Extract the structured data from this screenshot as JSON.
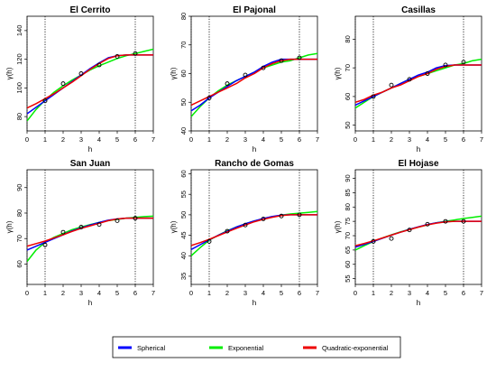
{
  "chart_data": [
    {
      "type": "line",
      "title": "El Cerrito",
      "xlabel": "h",
      "ylabel": "γ(h)",
      "xlim": [
        0,
        7
      ],
      "ylim": [
        70,
        150
      ],
      "xticks": [
        0,
        1,
        2,
        3,
        4,
        5,
        6,
        7
      ],
      "yticks": [
        80,
        100,
        120,
        140
      ],
      "vlines": [
        0,
        1,
        6
      ],
      "points": {
        "x": [
          1,
          2,
          3,
          4,
          5,
          6
        ],
        "y": [
          91,
          103,
          110,
          116,
          122,
          124
        ]
      },
      "series": [
        {
          "name": "Spherical",
          "x": [
            0,
            0.5,
            1,
            1.5,
            2,
            2.5,
            3,
            3.5,
            4,
            4.5,
            5,
            5.5,
            6,
            6.5,
            7
          ],
          "y": [
            82,
            86.5,
            91,
            95.5,
            100,
            104.5,
            109,
            113.5,
            117.5,
            121,
            122.5,
            123,
            123,
            123,
            123
          ]
        },
        {
          "name": "Exponential",
          "x": [
            0,
            0.5,
            1,
            1.5,
            2,
            2.5,
            3,
            3.5,
            4,
            4.5,
            5,
            5.5,
            6,
            6.5,
            7
          ],
          "y": [
            77,
            85,
            91.5,
            97,
            101.5,
            105.5,
            109,
            112.5,
            115.5,
            118,
            120.5,
            122.5,
            124,
            125.5,
            127
          ]
        },
        {
          "name": "Quadratic-exponential",
          "x": [
            0,
            0.5,
            1,
            1.5,
            2,
            2.5,
            3,
            3.5,
            4,
            4.5,
            5,
            5.5,
            6,
            6.5,
            7
          ],
          "y": [
            86,
            89,
            92.5,
            96,
            100,
            104,
            108.5,
            113,
            117,
            120.5,
            122.5,
            123,
            123,
            123,
            123
          ]
        }
      ]
    },
    {
      "type": "line",
      "title": "El Pajonal",
      "xlabel": "h",
      "ylabel": "γ(h)",
      "xlim": [
        0,
        7
      ],
      "ylim": [
        40,
        80
      ],
      "xticks": [
        0,
        1,
        2,
        3,
        4,
        5,
        6,
        7
      ],
      "yticks": [
        40,
        50,
        60,
        70,
        80
      ],
      "vlines": [
        0,
        1,
        6
      ],
      "points": {
        "x": [
          1,
          2,
          3,
          4,
          5,
          6
        ],
        "y": [
          51.5,
          56.5,
          59.5,
          62,
          64.5,
          65.5
        ]
      },
      "series": [
        {
          "name": "Spherical",
          "x": [
            0,
            0.5,
            1,
            1.5,
            2,
            2.5,
            3,
            3.5,
            4,
            4.5,
            5,
            5.5,
            6,
            6.5,
            7
          ],
          "y": [
            47,
            49,
            51.5,
            53.5,
            55.5,
            57.5,
            59,
            60.5,
            62.5,
            64,
            65,
            65,
            65,
            65,
            65
          ]
        },
        {
          "name": "Exponential",
          "x": [
            0,
            0.5,
            1,
            1.5,
            2,
            2.5,
            3,
            3.5,
            4,
            4.5,
            5,
            5.5,
            6,
            6.5,
            7
          ],
          "y": [
            45,
            48.5,
            51.5,
            54,
            56,
            57.5,
            59,
            60.5,
            62,
            63,
            64,
            64.5,
            65.5,
            66.5,
            67
          ]
        },
        {
          "name": "Quadratic-exponential",
          "x": [
            0,
            0.5,
            1,
            1.5,
            2,
            2.5,
            3,
            3.5,
            4,
            4.5,
            5,
            5.5,
            6,
            6.5,
            7
          ],
          "y": [
            49,
            50.5,
            52,
            53.5,
            55,
            56.5,
            58.5,
            60,
            62,
            63.5,
            64.5,
            65,
            65,
            65,
            65
          ]
        }
      ]
    },
    {
      "type": "line",
      "title": "Casillas",
      "xlabel": "h",
      "ylabel": "γ(h)",
      "xlim": [
        0,
        7
      ],
      "ylim": [
        48,
        88
      ],
      "xticks": [
        0,
        1,
        2,
        3,
        4,
        5,
        6,
        7
      ],
      "yticks": [
        50,
        60,
        70,
        80
      ],
      "vlines": [
        0,
        1,
        6
      ],
      "points": {
        "x": [
          1,
          2,
          3,
          4,
          5,
          6
        ],
        "y": [
          60,
          64,
          66,
          68,
          71,
          72
        ]
      },
      "series": [
        {
          "name": "Spherical",
          "x": [
            0,
            0.5,
            1,
            1.5,
            2,
            2.5,
            3,
            3.5,
            4,
            4.5,
            5,
            5.5,
            6,
            6.5,
            7
          ],
          "y": [
            57,
            58.5,
            60,
            61.5,
            63,
            64.5,
            66,
            67.5,
            68.5,
            70,
            70.8,
            71,
            71,
            71,
            71
          ]
        },
        {
          "name": "Exponential",
          "x": [
            0,
            0.5,
            1,
            1.5,
            2,
            2.5,
            3,
            3.5,
            4,
            4.5,
            5,
            5.5,
            6,
            6.5,
            7
          ],
          "y": [
            56,
            58,
            60,
            61.5,
            63,
            64.5,
            66,
            67,
            68,
            69,
            70,
            71,
            71.5,
            72.5,
            73
          ]
        },
        {
          "name": "Quadratic-exponential",
          "x": [
            0,
            0.5,
            1,
            1.5,
            2,
            2.5,
            3,
            3.5,
            4,
            4.5,
            5,
            5.5,
            6,
            6.5,
            7
          ],
          "y": [
            58,
            59,
            60.5,
            61.5,
            63,
            64,
            65.5,
            67,
            68,
            69.5,
            70.5,
            71,
            71,
            71,
            71
          ]
        }
      ]
    },
    {
      "type": "line",
      "title": "San Juan",
      "xlabel": "h",
      "ylabel": "γ(h)",
      "xlim": [
        0,
        7
      ],
      "ylim": [
        52,
        97
      ],
      "xticks": [
        0,
        1,
        2,
        3,
        4,
        5,
        6,
        7
      ],
      "yticks": [
        60,
        70,
        80,
        90
      ],
      "vlines": [
        0,
        1,
        6
      ],
      "points": {
        "x": [
          1,
          2,
          3,
          4,
          5,
          6
        ],
        "y": [
          67.5,
          72.5,
          74.5,
          75.5,
          77,
          78
        ]
      },
      "series": [
        {
          "name": "Spherical",
          "x": [
            0,
            0.5,
            1,
            1.5,
            2,
            2.5,
            3,
            3.5,
            4,
            4.5,
            5,
            5.5,
            6,
            6.5,
            7
          ],
          "y": [
            65.5,
            67,
            68.5,
            70,
            71.5,
            73,
            74.2,
            75.3,
            76.3,
            77.2,
            77.7,
            78,
            78,
            78,
            78
          ]
        },
        {
          "name": "Exponential",
          "x": [
            0,
            0.5,
            1,
            1.5,
            2,
            2.5,
            3,
            3.5,
            4,
            4.5,
            5,
            5.5,
            6,
            6.5,
            7
          ],
          "y": [
            61,
            65.5,
            68.5,
            70.5,
            72,
            73.5,
            74.5,
            75.5,
            76.3,
            77,
            77.5,
            78,
            78.3,
            78.6,
            78.8
          ]
        },
        {
          "name": "Quadratic-exponential",
          "x": [
            0,
            0.5,
            1,
            1.5,
            2,
            2.5,
            3,
            3.5,
            4,
            4.5,
            5,
            5.5,
            6,
            6.5,
            7
          ],
          "y": [
            67,
            68,
            69,
            70.3,
            71.5,
            72.8,
            74,
            75,
            76,
            77,
            77.7,
            78,
            78,
            78,
            78
          ]
        }
      ]
    },
    {
      "type": "line",
      "title": "Rancho de Gomas",
      "xlabel": "h",
      "ylabel": "γ(h)",
      "xlim": [
        0,
        7
      ],
      "ylim": [
        33,
        61
      ],
      "xticks": [
        0,
        1,
        2,
        3,
        4,
        5,
        6,
        7
      ],
      "yticks": [
        35,
        40,
        45,
        50,
        55,
        60
      ],
      "vlines": [
        0,
        1,
        6
      ],
      "points": {
        "x": [
          1,
          2,
          3,
          4,
          5,
          6
        ],
        "y": [
          43.5,
          46,
          47.5,
          49,
          49.7,
          50
        ]
      },
      "series": [
        {
          "name": "Spherical",
          "x": [
            0,
            0.5,
            1,
            1.5,
            2,
            2.5,
            3,
            3.5,
            4,
            4.5,
            5,
            5.5,
            6,
            6.5,
            7
          ],
          "y": [
            41.5,
            42.7,
            43.9,
            45,
            46,
            47,
            47.8,
            48.5,
            49.1,
            49.6,
            49.9,
            50,
            50,
            50,
            50
          ]
        },
        {
          "name": "Exponential",
          "x": [
            0,
            0.5,
            1,
            1.5,
            2,
            2.5,
            3,
            3.5,
            4,
            4.5,
            5,
            5.5,
            6,
            6.5,
            7
          ],
          "y": [
            40,
            42,
            43.8,
            45,
            46.1,
            47,
            47.8,
            48.5,
            49,
            49.5,
            49.9,
            50.2,
            50.4,
            50.6,
            50.8
          ]
        },
        {
          "name": "Quadratic-exponential",
          "x": [
            0,
            0.5,
            1,
            1.5,
            2,
            2.5,
            3,
            3.5,
            4,
            4.5,
            5,
            5.5,
            6,
            6.5,
            7
          ],
          "y": [
            42.5,
            43.2,
            44,
            44.9,
            45.8,
            46.7,
            47.5,
            48.3,
            48.9,
            49.4,
            49.8,
            50,
            50,
            50,
            50
          ]
        }
      ]
    },
    {
      "type": "line",
      "title": "El Hojase",
      "xlabel": "h",
      "ylabel": "γ(h)",
      "xlim": [
        0,
        7
      ],
      "ylim": [
        53,
        93
      ],
      "xticks": [
        0,
        1,
        2,
        3,
        4,
        5,
        6,
        7
      ],
      "yticks": [
        55,
        60,
        65,
        70,
        75,
        80,
        85,
        90
      ],
      "vlines": [
        0,
        1,
        6
      ],
      "points": {
        "x": [
          1,
          2,
          3,
          4,
          5,
          6
        ],
        "y": [
          68,
          69,
          72,
          74,
          75,
          75
        ]
      },
      "series": [
        {
          "name": "Spherical",
          "x": [
            0,
            0.5,
            1,
            1.5,
            2,
            2.5,
            3,
            3.5,
            4,
            4.5,
            5,
            5.5,
            6,
            6.5,
            7
          ],
          "y": [
            66,
            67,
            68,
            69.1,
            70.2,
            71.2,
            72.2,
            73.1,
            73.9,
            74.5,
            74.9,
            75,
            75,
            75,
            75
          ]
        },
        {
          "name": "Exponential",
          "x": [
            0,
            0.5,
            1,
            1.5,
            2,
            2.5,
            3,
            3.5,
            4,
            4.5,
            5,
            5.5,
            6,
            6.5,
            7
          ],
          "y": [
            65,
            66.5,
            68,
            69.2,
            70.3,
            71.3,
            72.2,
            73,
            73.8,
            74.5,
            75,
            75.5,
            76,
            76.4,
            76.8
          ]
        },
        {
          "name": "Quadratic-exponential",
          "x": [
            0,
            0.5,
            1,
            1.5,
            2,
            2.5,
            3,
            3.5,
            4,
            4.5,
            5,
            5.5,
            6,
            6.5,
            7
          ],
          "y": [
            66.5,
            67.3,
            68.2,
            69.2,
            70.2,
            71.2,
            72.1,
            73,
            73.8,
            74.4,
            74.8,
            75,
            75,
            75,
            75
          ]
        }
      ]
    }
  ],
  "legend": {
    "items": [
      {
        "label": "Spherical",
        "color": "#0000ff"
      },
      {
        "label": "Exponential",
        "color": "#00ee00"
      },
      {
        "label": "Quadratic-exponential",
        "color": "#ee0000"
      }
    ]
  }
}
